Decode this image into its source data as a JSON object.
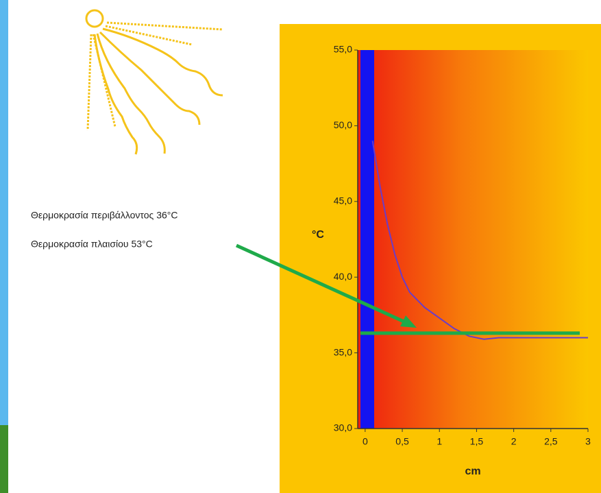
{
  "chart_data": {
    "type": "line",
    "annotations": [
      "Θερμοκρασία περιβάλλοντος 36°C",
      "Θερμοκρασία πλαισίου 53°C"
    ],
    "ylabel": "°C",
    "xlabel": "cm",
    "x": [
      0.1,
      0.2,
      0.3,
      0.4,
      0.5,
      0.6,
      0.8,
      1.0,
      1.2,
      1.4,
      1.6,
      1.8,
      2.2,
      3.0
    ],
    "series": [
      {
        "color": "#6a3cc8",
        "values": [
          49,
          46,
          43.5,
          41.5,
          40,
          39,
          38,
          37.3,
          36.6,
          36.1,
          35.9,
          36.0,
          36.0,
          36.0
        ]
      }
    ],
    "reference_line": {
      "value": 36.3,
      "color": "#1faa4a"
    },
    "xlim": [
      -0.1,
      3.0
    ],
    "ylim": [
      30,
      55
    ],
    "xticks": [
      0,
      {
        "value": 0.5,
        "label": "0,5"
      },
      1,
      {
        "value": 1.5,
        "label": "1,5"
      },
      2,
      {
        "value": 2.5,
        "label": "2,5"
      },
      3
    ],
    "yticks": [
      {
        "value": 30,
        "label": "30,0"
      },
      {
        "value": 35,
        "label": "35,0"
      },
      {
        "value": 40,
        "label": "40,0"
      },
      {
        "value": 45,
        "label": "45,0"
      },
      {
        "value": 50,
        "label": "50,0"
      },
      {
        "value": 55,
        "label": "55,0"
      }
    ]
  }
}
